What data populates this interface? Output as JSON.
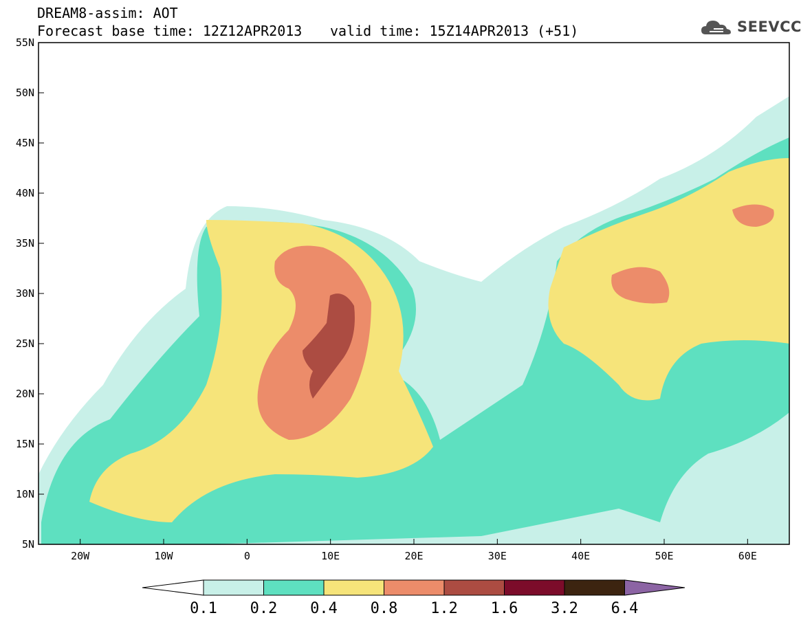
{
  "header": {
    "title": "DREAM8-assim: AOT",
    "base_time": "Forecast base time: 12Z12APR2013",
    "valid_time": "valid time: 15Z14APR2013 (+51)"
  },
  "logo": {
    "text": "SEEVCCC",
    "icon": "cloud-icon"
  },
  "map": {
    "projection": "lat-lon",
    "lon_range": [
      -25,
      65
    ],
    "lat_range": [
      5,
      55
    ],
    "lon_ticks": [
      "20W",
      "10W",
      "0",
      "10E",
      "20E",
      "30E",
      "40E",
      "50E",
      "60E"
    ],
    "lat_ticks": [
      "55N",
      "50N",
      "45N",
      "40N",
      "35N",
      "30N",
      "25N",
      "20N",
      "15N",
      "10N",
      "5N"
    ],
    "variable": "AOT"
  },
  "colorbar": {
    "labels": [
      "0.1",
      "0.2",
      "0.4",
      "0.8",
      "1.2",
      "1.6",
      "3.2",
      "6.4"
    ],
    "colors": [
      "#c8f0e8",
      "#5ee0c0",
      "#f6e47a",
      "#ec8c6a",
      "#ac4c42",
      "#7c0c2a",
      "#3c2410",
      "#8c64a4"
    ],
    "extend_low_color": "#ffffff"
  }
}
